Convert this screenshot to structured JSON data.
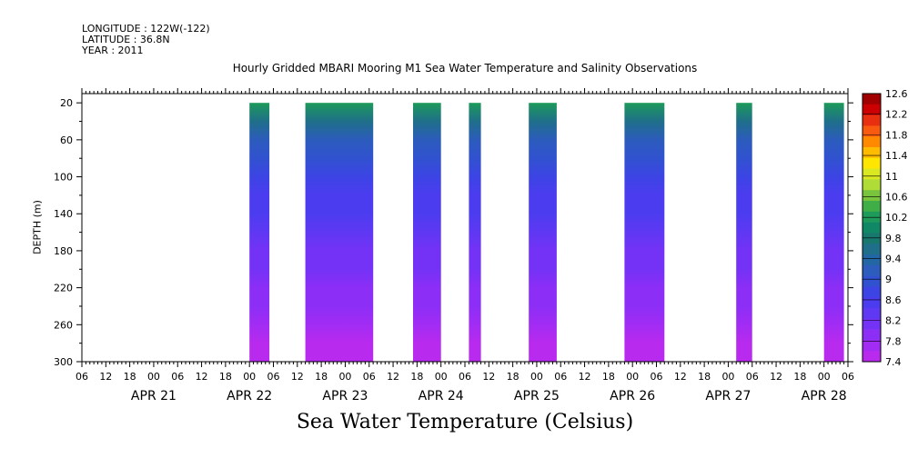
{
  "header": {
    "longitude": "LONGITUDE : 122W(-122)",
    "latitude": "LATITUDE : 36.8N",
    "year": "YEAR : 2011"
  },
  "chart_data": {
    "type": "heatmap",
    "title": "Hourly Gridded MBARI Mooring M1 Sea Water Temperature and Salinity Observations",
    "xlabel": "Sea Water Temperature (Celsius)",
    "ylabel": "DEPTH (m)",
    "ylim": [
      300,
      10
    ],
    "y_ticks": [
      20,
      60,
      100,
      140,
      180,
      220,
      260,
      300
    ],
    "x_hour_ticks": [
      "06",
      "12",
      "18",
      "00",
      "06",
      "12",
      "18",
      "00",
      "06",
      "12",
      "18",
      "00",
      "06",
      "12",
      "18",
      "00",
      "06",
      "12",
      "18",
      "00",
      "06",
      "12",
      "18",
      "00",
      "06",
      "12",
      "18",
      "00",
      "06",
      "12",
      "18",
      "00",
      "06"
    ],
    "day_labels": [
      "APR 21",
      "APR 22",
      "APR 23",
      "APR 24",
      "APR 25",
      "APR 26",
      "APR 27",
      "APR 28"
    ],
    "colorbar": {
      "levels": [
        "12.6",
        "12.2",
        "11.8",
        "11.4",
        "11",
        "10.6",
        "10.2",
        "9.8",
        "9.4",
        "9",
        "8.6",
        "8.2",
        "7.8",
        "7.4"
      ],
      "colors": [
        "#a00000",
        "#cc0000",
        "#e83010",
        "#f85a10",
        "#ff8a00",
        "#ffbb00",
        "#ffe600",
        "#d9e820",
        "#b0dc38",
        "#78c43c",
        "#40ae46",
        "#1e9a5a",
        "#108866",
        "#18786e",
        "#1f6f8a",
        "#2366a4",
        "#2c5cbc",
        "#3152d0",
        "#3c44e4",
        "#4c3cf0",
        "#5f38f4",
        "#7432f6",
        "#8c2ef6",
        "#a22cf4",
        "#b82aee"
      ],
      "range": [
        7.4,
        12.6
      ]
    },
    "observation_intervals_hours_from_apr21_00": [
      {
        "start": 24,
        "end": 29
      },
      {
        "start": 38,
        "end": 55
      },
      {
        "start": 65,
        "end": 72
      },
      {
        "start": 79,
        "end": 82
      },
      {
        "start": 94,
        "end": 101
      },
      {
        "start": 118,
        "end": 128
      },
      {
        "start": 146,
        "end": 150
      },
      {
        "start": 168,
        "end": 173
      }
    ],
    "profile": {
      "depths": [
        20,
        40,
        60,
        80,
        100,
        120,
        140,
        160,
        180,
        200,
        220,
        240,
        260,
        280,
        300
      ],
      "temps": [
        10.2,
        9.6,
        9.2,
        8.95,
        8.75,
        8.6,
        8.45,
        8.3,
        8.2,
        8.05,
        7.95,
        7.85,
        7.7,
        7.6,
        7.5
      ]
    }
  }
}
